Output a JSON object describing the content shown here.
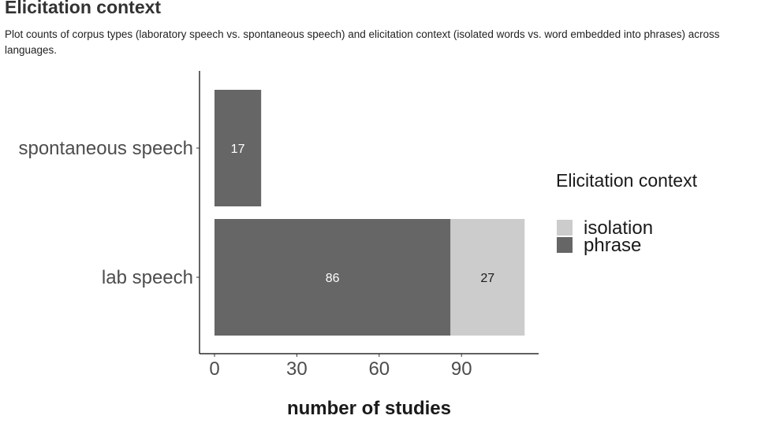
{
  "page": {
    "heading": "Elicitation context",
    "description": "Plot counts of corpus types (laboratory speech vs. spontaneous speech) and elicitation context (isolated words vs. word embedded into phrases) across languages."
  },
  "chart_data": {
    "type": "bar",
    "orientation": "horizontal",
    "stacked": true,
    "categories": [
      "spontaneous speech",
      "lab speech"
    ],
    "series": [
      {
        "name": "phrase",
        "values": [
          17,
          86
        ],
        "color": "#666666",
        "label_color": "#ffffff"
      },
      {
        "name": "isolation",
        "values": [
          0,
          27
        ],
        "color": "#cccccc",
        "label_color": "#1a1a1a"
      }
    ],
    "xlabel": "number of studies",
    "ylabel": "",
    "xlim": [
      0,
      113
    ],
    "xticks": [
      0,
      30,
      60,
      90
    ],
    "legend": {
      "title": "Elicitation context",
      "position": "right",
      "entries": [
        "isolation",
        "phrase"
      ]
    },
    "grid": false
  }
}
